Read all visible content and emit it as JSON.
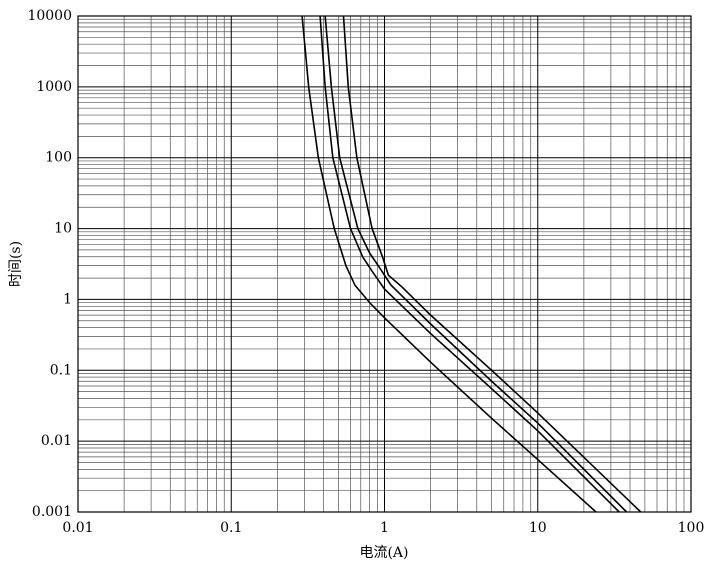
{
  "chart_data": {
    "type": "line",
    "xlabel": "电流(A)",
    "ylabel": "时间(s)",
    "xscale": "log",
    "yscale": "log",
    "xlim": [
      0.01,
      100
    ],
    "ylim": [
      0.001,
      10000
    ],
    "xticks": [
      0.01,
      0.1,
      1,
      10,
      100
    ],
    "yticks": [
      0.001,
      0.01,
      0.1,
      1,
      10,
      100,
      1000,
      10000
    ],
    "grid": true,
    "minor_grid": true,
    "series": [
      {
        "color": "#000000",
        "x": [
          0.29,
          0.32,
          0.37,
          0.47,
          0.56,
          0.64,
          0.8,
          1,
          2,
          5,
          10,
          24
        ],
        "values": [
          10000,
          1000,
          100,
          10,
          3,
          1.6,
          0.9,
          0.55,
          0.13,
          0.021,
          0.0055,
          0.001
        ]
      },
      {
        "color": "#000000",
        "x": [
          0.38,
          0.41,
          0.46,
          0.6,
          0.72,
          0.83,
          1,
          2,
          5,
          10,
          34
        ],
        "values": [
          10000,
          1000,
          100,
          10,
          4,
          2.5,
          1.4,
          0.33,
          0.055,
          0.014,
          0.001
        ]
      },
      {
        "color": "#000000",
        "x": [
          0.41,
          0.45,
          0.51,
          0.67,
          0.8,
          0.91,
          1.1,
          2,
          5,
          10,
          38
        ],
        "values": [
          10000,
          1000,
          100,
          10,
          4.5,
          3,
          1.6,
          0.45,
          0.07,
          0.018,
          0.001
        ]
      },
      {
        "color": "#000000",
        "x": [
          0.54,
          0.58,
          0.66,
          0.83,
          0.97,
          1.06,
          1.3,
          2,
          5,
          10,
          47
        ],
        "values": [
          10000,
          1000,
          100,
          10,
          4,
          2.2,
          1.5,
          0.6,
          0.1,
          0.025,
          0.001
        ]
      }
    ]
  }
}
